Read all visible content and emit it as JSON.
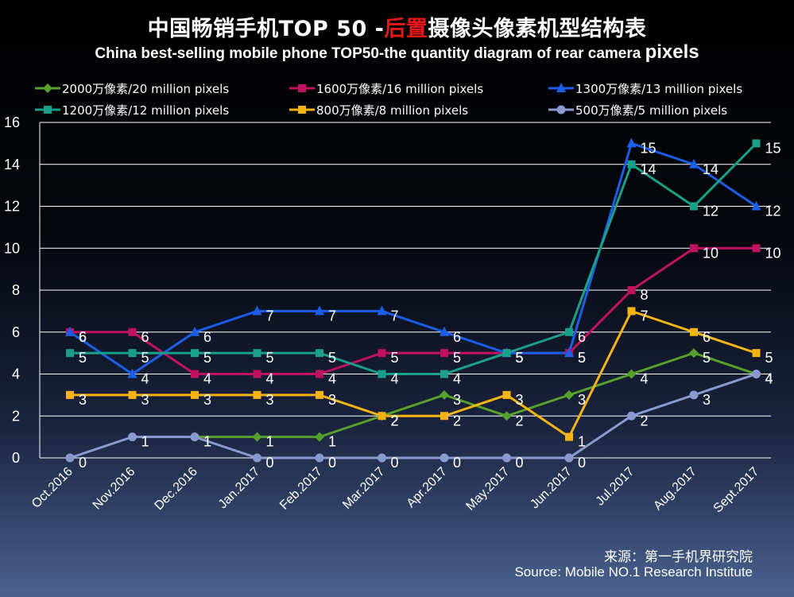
{
  "chart_data": {
    "type": "line",
    "title_cn_part1": "中国畅销手机TOP 50 -",
    "title_cn_highlight": "后置",
    "title_cn_part2": "摄像头像素机型结构表",
    "title_en_part1": "China best-selling mobile phone TOP50-the quantity diagram of rear camera ",
    "title_en_part2": "pixels",
    "categories": [
      "Oct.2016",
      "Nov.2016",
      "Dec.2016",
      "Jan.2017",
      "Feb.2017",
      "Mar.2017",
      "Apr.2017",
      "May.2017",
      "Jun.2017",
      "Jul.2017",
      "Aug.2017",
      "Sept.2017"
    ],
    "ylim": [
      0,
      16
    ],
    "yticks": [
      0,
      2,
      4,
      6,
      8,
      10,
      12,
      14,
      16
    ],
    "grid": true,
    "series": [
      {
        "name": "2000万像素/20 million pixels",
        "color": "#58a02c",
        "marker": "diamond",
        "values": [
          null,
          null,
          1,
          1,
          1,
          2,
          3,
          2,
          3,
          4,
          5,
          4
        ],
        "labels": [
          "",
          "",
          "1",
          "1",
          "1",
          "2",
          "3",
          "2",
          "3",
          "4",
          "5",
          "4"
        ]
      },
      {
        "name": "1600万像素/16 million pixels",
        "color": "#c0125e",
        "marker": "square",
        "values": [
          6,
          6,
          4,
          4,
          4,
          5,
          5,
          5,
          5,
          8,
          10,
          10
        ],
        "labels": [
          "6",
          "6",
          "4",
          "4",
          "4",
          "5",
          "5",
          "5",
          "5",
          "8",
          "10",
          "10"
        ]
      },
      {
        "name": "1300万像素/13 million pixels",
        "color": "#1a5eea",
        "marker": "triangle",
        "values": [
          6,
          4,
          6,
          7,
          7,
          7,
          6,
          5,
          5,
          15,
          14,
          12
        ],
        "labels": [
          "6",
          "4",
          "6",
          "7",
          "7",
          "7",
          "6",
          "5",
          "5",
          "15",
          "14",
          "12"
        ]
      },
      {
        "name": "1200万像素/12 million pixels",
        "color": "#1aa08a",
        "marker": "square",
        "values": [
          5,
          5,
          5,
          5,
          5,
          4,
          4,
          5,
          6,
          14,
          12,
          15
        ],
        "labels": [
          "5",
          "5",
          "5",
          "5",
          "5",
          "4",
          "4",
          "5",
          "6",
          "14",
          "12",
          "15"
        ]
      },
      {
        "name": "800万像素/8 million pixels",
        "color": "#f5b412",
        "marker": "square",
        "values": [
          3,
          3,
          3,
          3,
          3,
          2,
          2,
          3,
          1,
          7,
          6,
          5
        ],
        "labels": [
          "3",
          "3",
          "3",
          "3",
          "3",
          "2",
          "2",
          "3",
          "1",
          "7",
          "6",
          "5"
        ]
      },
      {
        "name": "500万像素/5 million pixels",
        "color": "#8a9ad0",
        "marker": "circle",
        "values": [
          0,
          1,
          1,
          0,
          0,
          0,
          0,
          0,
          0,
          2,
          3,
          4
        ],
        "labels": [
          "0",
          "1",
          "1",
          "0",
          "0",
          "0",
          "0",
          "0",
          "0",
          "2",
          "3",
          "4"
        ]
      }
    ]
  },
  "source": {
    "cn": "来源：第一手机界研究院",
    "en": "Source: Mobile NO.1 Research Institute"
  }
}
